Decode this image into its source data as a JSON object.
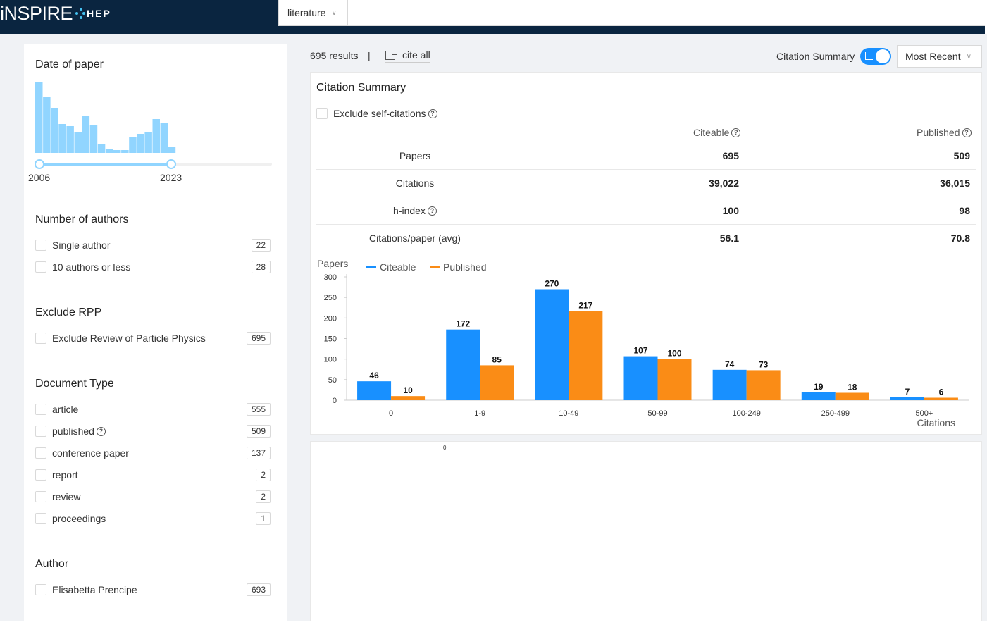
{
  "header": {
    "logo_main": "iNSPIRE",
    "logo_hep": "HEP",
    "search_scope": "literature",
    "search_placeholder": ""
  },
  "sidebar": {
    "date_facet": {
      "title": "Date of paper",
      "range_start": "2006",
      "range_end": "2023",
      "histogram_values": [
        100,
        79,
        64,
        41,
        38,
        29,
        53,
        40,
        12,
        6,
        4,
        4,
        22,
        27,
        30,
        48,
        42,
        9
      ]
    },
    "authors_facet": {
      "title": "Number of authors",
      "items": [
        {
          "label": "Single author",
          "count": "22"
        },
        {
          "label": "10 authors or less",
          "count": "28"
        }
      ]
    },
    "rpp_facet": {
      "title": "Exclude RPP",
      "items": [
        {
          "label": "Exclude Review of Particle Physics",
          "count": "695"
        }
      ]
    },
    "doctype_facet": {
      "title": "Document Type",
      "items": [
        {
          "label": "article",
          "count": "555"
        },
        {
          "label": "published",
          "count": "509"
        },
        {
          "label": "conference paper",
          "count": "137"
        },
        {
          "label": "report",
          "count": "2"
        },
        {
          "label": "review",
          "count": "2"
        },
        {
          "label": "proceedings",
          "count": "1"
        }
      ]
    },
    "author_facet": {
      "title": "Author",
      "items": [
        {
          "label": "Elisabetta Prencipe",
          "count": "693"
        }
      ]
    }
  },
  "results": {
    "count_text": "695 results",
    "separator": "|",
    "cite_all": "cite all",
    "citation_summary_label": "Citation Summary",
    "sort_value": "Most Recent"
  },
  "citation_summary": {
    "title": "Citation Summary",
    "exclude_self": "Exclude self-citations",
    "col_citeable": "Citeable",
    "col_published": "Published",
    "rows": [
      {
        "label": "Papers",
        "citeable": "695",
        "published": "509"
      },
      {
        "label": "Citations",
        "citeable": "39,022",
        "published": "36,015"
      },
      {
        "label": "h-index",
        "citeable": "100",
        "published": "98"
      },
      {
        "label": "Citations/paper (avg)",
        "citeable": "56.1",
        "published": "70.8"
      }
    ]
  },
  "chart_data": {
    "type": "bar",
    "ylabel": "Papers",
    "xlabel": "Citations",
    "categories": [
      "0",
      "1-9",
      "10-49",
      "50-99",
      "100-249",
      "250-499",
      "500+"
    ],
    "series": [
      {
        "name": "Citeable",
        "color": "#1890ff",
        "values": [
          46,
          172,
          270,
          107,
          74,
          19,
          7
        ]
      },
      {
        "name": "Published",
        "color": "#fa8c16",
        "values": [
          10,
          85,
          217,
          100,
          73,
          18,
          6
        ]
      }
    ],
    "ylim": [
      0,
      300
    ],
    "yticks": [
      0,
      50,
      100,
      150,
      200,
      250,
      300
    ],
    "legend": "top-left"
  },
  "card2": {
    "tiny_label": "0"
  },
  "colors": {
    "header_bg": "#0a2540",
    "accent": "#1890ff",
    "histogram": "#91d5ff"
  }
}
